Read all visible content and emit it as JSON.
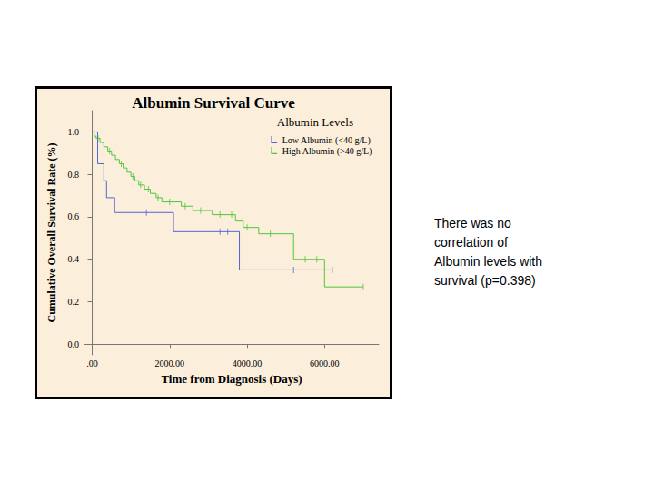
{
  "chart_data": {
    "type": "line",
    "title": "Albumin Survival Curve",
    "x_label": "Time from Diagnosis (Days)",
    "y_label": "Cumulative Overall Survival Rate (%)",
    "legend_title": "Albumin Levels",
    "legend": "top-right",
    "grid": false,
    "line_style": "step",
    "marker": "tick",
    "xlim": [
      -200,
      7400
    ],
    "xticks": [
      {
        "value": 0,
        "label": ".00"
      },
      {
        "value": 2000,
        "label": "2000.00"
      },
      {
        "value": 4000,
        "label": "4000.00"
      },
      {
        "value": 6000,
        "label": "6000.00"
      }
    ],
    "ylim": [
      -0.05,
      1.1
    ],
    "yticks": [
      {
        "value": 0,
        "label": "0.0"
      },
      {
        "value": 0.2,
        "label": "0.2"
      },
      {
        "value": 0.4,
        "label": "0.4"
      },
      {
        "value": 0.6,
        "label": "0.6"
      },
      {
        "value": 0.8,
        "label": "0.8"
      },
      {
        "value": 1.0,
        "label": "1.0"
      }
    ],
    "series": [
      {
        "name": "Low Albumin (<40 g/L)",
        "color": "#5566d4",
        "x": [
          0,
          140,
          300,
          370,
          580,
          2100,
          3800,
          6200
        ],
        "values": [
          1.0,
          0.85,
          0.77,
          0.69,
          0.62,
          0.53,
          0.35,
          0.35
        ],
        "censor_x": [
          1400,
          3300,
          3500,
          5200,
          6200
        ],
        "censor_values": [
          0.62,
          0.53,
          0.53,
          0.35,
          0.35
        ]
      },
      {
        "name": "High Albumin (>40 g/L)",
        "color": "#4fc73c",
        "x": [
          0,
          50,
          100,
          200,
          300,
          400,
          500,
          600,
          700,
          800,
          900,
          1000,
          1100,
          1200,
          1350,
          1500,
          1650,
          1800,
          2300,
          2600,
          3100,
          3700,
          3900,
          4300,
          5200,
          6000,
          7000
        ],
        "values": [
          1.0,
          0.98,
          0.97,
          0.95,
          0.93,
          0.91,
          0.89,
          0.87,
          0.85,
          0.83,
          0.81,
          0.79,
          0.77,
          0.75,
          0.73,
          0.71,
          0.69,
          0.67,
          0.65,
          0.63,
          0.61,
          0.58,
          0.55,
          0.52,
          0.4,
          0.27,
          0.27
        ],
        "censor_x": [
          150,
          450,
          750,
          1050,
          1250,
          1450,
          1700,
          2000,
          2400,
          2800,
          3300,
          3600,
          4000,
          4600,
          5500,
          5800,
          7000
        ],
        "censor_values": [
          0.97,
          0.91,
          0.85,
          0.79,
          0.75,
          0.73,
          0.69,
          0.67,
          0.65,
          0.63,
          0.61,
          0.61,
          0.55,
          0.52,
          0.4,
          0.4,
          0.27
        ]
      }
    ],
    "annotation": [
      "There was no",
      "correlation of",
      "Albumin levels with",
      "survival  (p=0.398)"
    ]
  }
}
